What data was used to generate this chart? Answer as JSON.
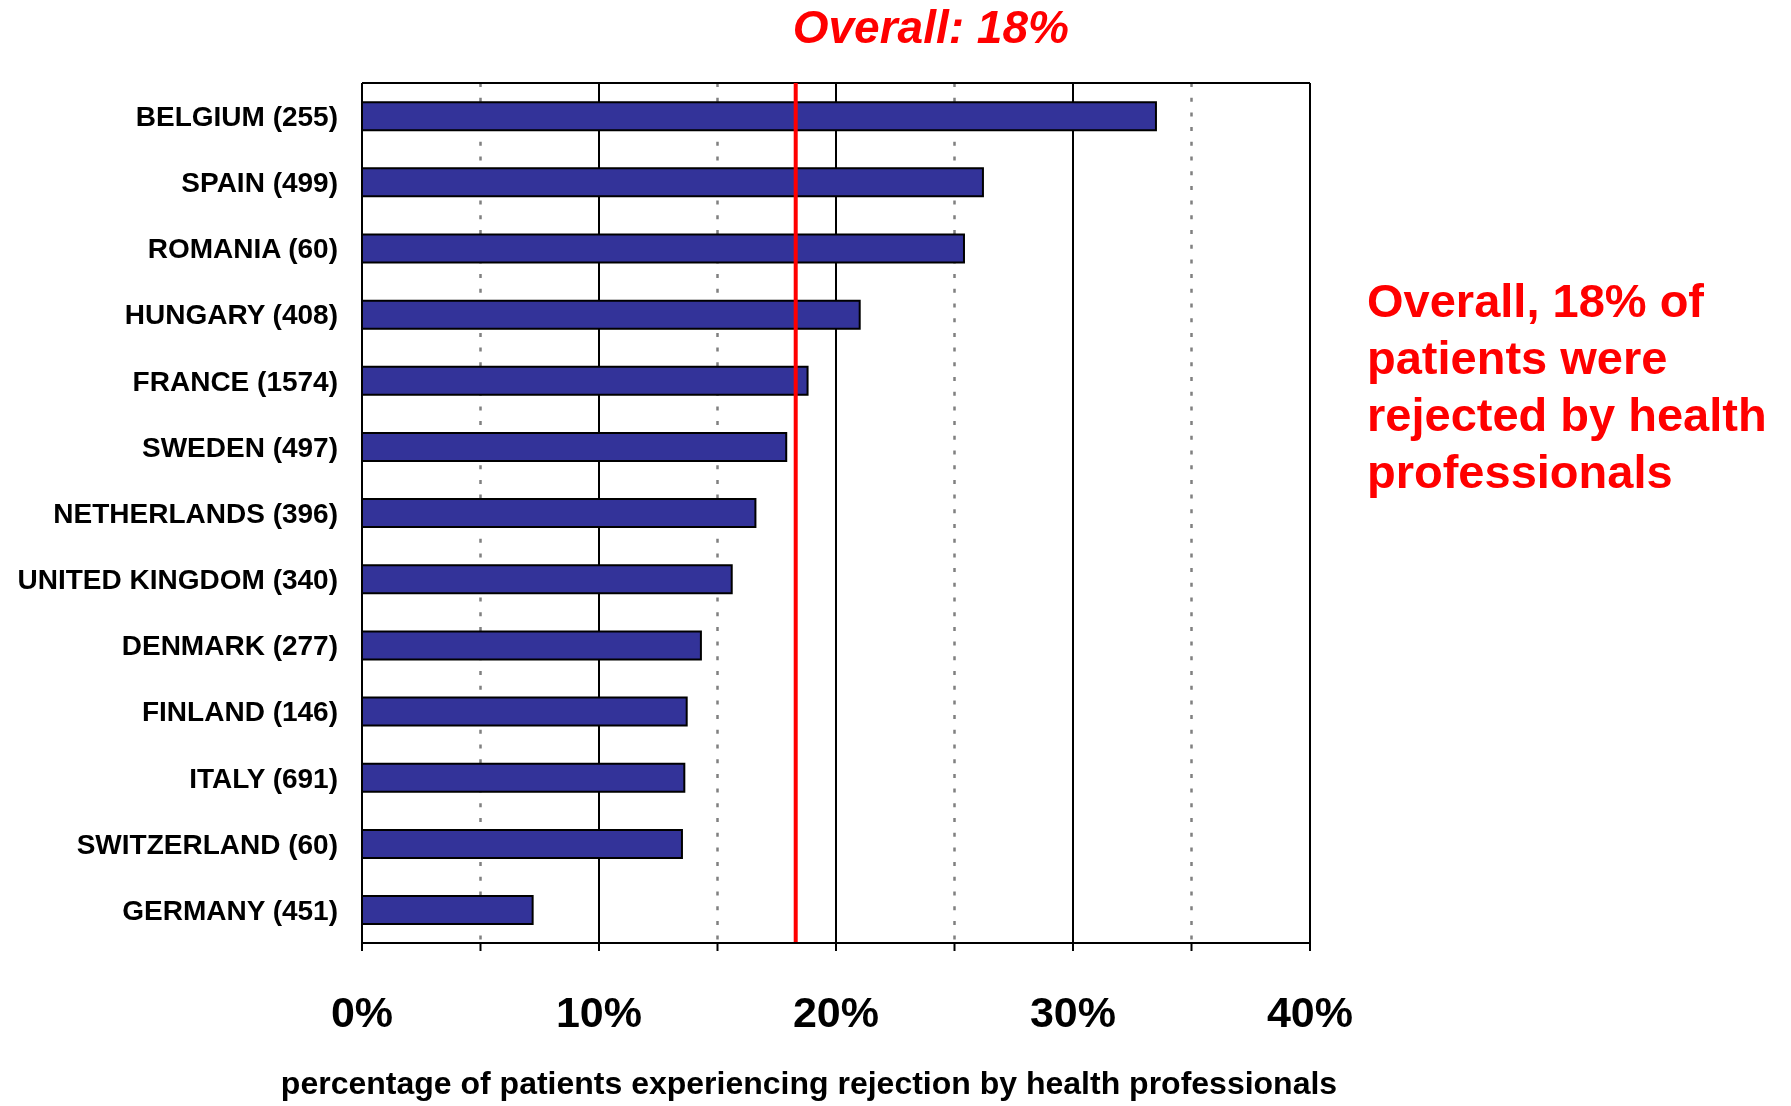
{
  "chart_data": {
    "type": "bar",
    "orientation": "horizontal",
    "xlabel": "percentage of patients experiencing rejection by health professionals",
    "categories": [
      "BELGIUM (255)",
      "SPAIN (499)",
      "ROMANIA (60)",
      "HUNGARY (408)",
      "FRANCE (1574)",
      "SWEDEN (497)",
      "NETHERLANDS (396)",
      "UNITED KINGDOM (340)",
      "DENMARK (277)",
      "FINLAND (146)",
      "ITALY (691)",
      "SWITZERLAND (60)",
      "GERMANY (451)"
    ],
    "values": [
      33.5,
      26.2,
      25.4,
      21.0,
      18.8,
      17.9,
      16.6,
      15.6,
      14.3,
      13.7,
      13.6,
      13.5,
      7.2
    ],
    "color": "#333399",
    "xlim": [
      0,
      40
    ],
    "xticks": [
      {
        "value": 0,
        "label": "0%"
      },
      {
        "value": 5,
        "label": null
      },
      {
        "value": 10,
        "label": "10%"
      },
      {
        "value": 15,
        "label": null
      },
      {
        "value": 20,
        "label": "20%"
      },
      {
        "value": 25,
        "label": null
      },
      {
        "value": 30,
        "label": "30%"
      },
      {
        "value": 35,
        "label": null
      },
      {
        "value": 40,
        "label": "40%"
      }
    ],
    "grid": "x",
    "ref_lines": [
      {
        "axis": "x",
        "value": 18.3,
        "label": "Overall: 18%",
        "color": "#ff0000"
      }
    ],
    "annotations": [
      "Overall, 18% of patients were rejected by health professionals"
    ]
  }
}
